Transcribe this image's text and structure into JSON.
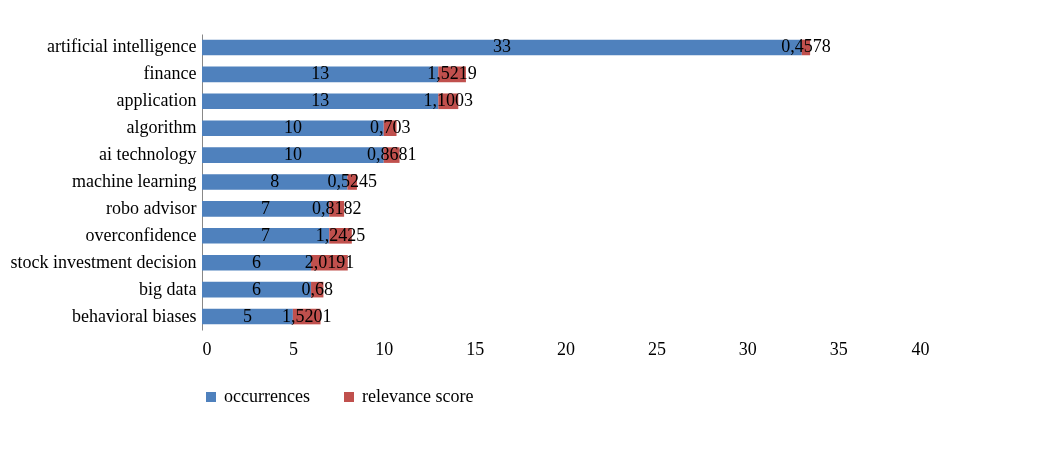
{
  "chart_data": {
    "type": "bar",
    "orientation": "horizontal",
    "stacked": true,
    "categories": [
      "artificial intelligence",
      "finance",
      "application",
      "algorithm",
      "ai technology",
      "machine learning",
      "robo advisor",
      "overconfidence",
      "stock investment decision",
      "big data",
      "behavioral biases"
    ],
    "series": [
      {
        "name": "occurrences",
        "color": "#4f81bd",
        "values": [
          33,
          13,
          13,
          10,
          10,
          8,
          7,
          7,
          6,
          6,
          5
        ],
        "value_labels": [
          "33",
          "13",
          "13",
          "10",
          "10",
          "8",
          "7",
          "7",
          "6",
          "6",
          "5"
        ]
      },
      {
        "name": "relevance score",
        "color": "#c0504d",
        "values": [
          0.4578,
          1.5219,
          1.1003,
          0.703,
          0.8681,
          0.5245,
          0.8182,
          1.2425,
          2.0191,
          0.68,
          1.5201
        ],
        "value_labels": [
          "0,4578",
          "1,5219",
          "1,1003",
          "0,703",
          "0,8681",
          "0,5245",
          "0,8182",
          "1,2425",
          "2,0191",
          "0,68",
          "1,5201"
        ]
      }
    ],
    "xlim": [
      0,
      40
    ],
    "xticks": [
      0,
      5,
      10,
      15,
      20,
      25,
      30,
      35,
      40
    ],
    "grid": false,
    "legend": "bottom"
  }
}
